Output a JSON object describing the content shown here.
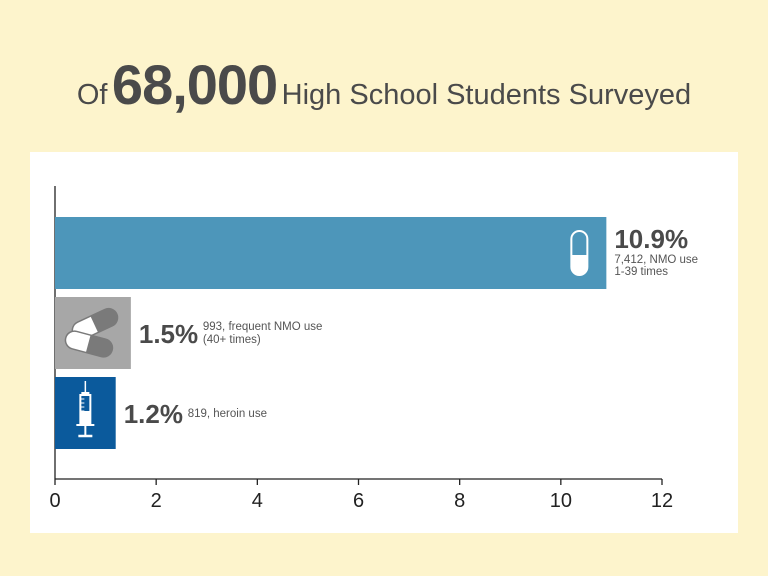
{
  "title": {
    "prefix": "Of",
    "number": "68,000",
    "suffix": "High School Students Surveyed"
  },
  "chart_data": {
    "type": "bar",
    "orientation": "horizontal",
    "title": "Of 68,000 High School Students Surveyed",
    "xlim": [
      0,
      12
    ],
    "x_ticks": [
      0,
      2,
      4,
      6,
      8,
      10,
      12
    ],
    "grid": false,
    "series": [
      {
        "values": [
          10.9,
          1.5,
          1.2
        ],
        "value_labels": [
          "10.9%",
          "1.5%",
          "1.2%"
        ],
        "descriptions": [
          [
            "7,412, NMO use",
            "1-39 times"
          ],
          [
            "993, frequent NMO use",
            "(40+ times)"
          ],
          [
            "819, heroin use"
          ]
        ],
        "colors": [
          "#4d96ba",
          "#a7a7a7",
          "#0b5a9c"
        ],
        "icons": [
          "capsule-icon",
          "pills-icon",
          "syringe-icon"
        ]
      }
    ]
  }
}
